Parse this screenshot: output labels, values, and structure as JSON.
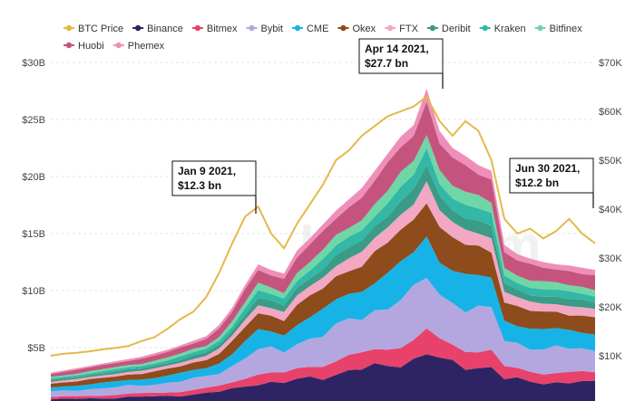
{
  "chart_data": {
    "type": "area",
    "stacked": true,
    "title": "",
    "xlabel": "",
    "ylabel": "",
    "ylim_left": [
      0,
      30
    ],
    "ylim_right": [
      0,
      70
    ],
    "yticks_left": [
      "$5B",
      "$10B",
      "$15B",
      "$20B",
      "$25B",
      "$30B"
    ],
    "yticks_right": [
      "$10K",
      "$20K",
      "$30K",
      "$40K",
      "$50K",
      "$60K",
      "$70K"
    ],
    "grid": true,
    "legend_position": "top",
    "legend": [
      {
        "name": "BTC Price",
        "color": "#e6b84a",
        "kind": "line"
      },
      {
        "name": "Binance",
        "color": "#2e2464",
        "kind": "area"
      },
      {
        "name": "Bitmex",
        "color": "#e8426b",
        "kind": "area"
      },
      {
        "name": "Bybit",
        "color": "#b4a7e0",
        "kind": "area"
      },
      {
        "name": "CME",
        "color": "#17b3e6",
        "kind": "area"
      },
      {
        "name": "Okex",
        "color": "#8e4b1c",
        "kind": "area"
      },
      {
        "name": "FTX",
        "color": "#f2a7c2",
        "kind": "area"
      },
      {
        "name": "Deribit",
        "color": "#3a9b86",
        "kind": "area"
      },
      {
        "name": "Kraken",
        "color": "#33b7a6",
        "kind": "area"
      },
      {
        "name": "Bitfinex",
        "color": "#6fd6a6",
        "kind": "area"
      },
      {
        "name": "Huobi",
        "color": "#c4547e",
        "kind": "area"
      },
      {
        "name": "Phemex",
        "color": "#ef8fb9",
        "kind": "area"
      }
    ],
    "stack_order": [
      "Binance",
      "Bitmex",
      "Bybit",
      "CME",
      "Okex",
      "FTX",
      "Deribit",
      "Kraken",
      "Bitfinex",
      "Huobi",
      "Phemex"
    ],
    "total_oi_billion": [
      2.8,
      3.0,
      3.2,
      3.4,
      3.6,
      3.8,
      4.0,
      4.2,
      4.5,
      4.8,
      5.2,
      5.6,
      6.0,
      7.0,
      8.5,
      10.5,
      12.3,
      11.8,
      11.5,
      13.5,
      14.6,
      15.8,
      17.0,
      18.0,
      19.0,
      20.5,
      22.0,
      23.5,
      24.5,
      27.7,
      24.0,
      22.5,
      21.8,
      21.0,
      20.5,
      14.0,
      13.2,
      12.8,
      12.5,
      12.3,
      12.2,
      12.0,
      11.8
    ],
    "btc_price_k": [
      10.0,
      10.4,
      10.6,
      10.9,
      11.3,
      11.6,
      12.0,
      13.0,
      13.8,
      15.5,
      17.5,
      19.0,
      22.0,
      27.0,
      33.0,
      38.5,
      40.5,
      35.0,
      32.0,
      37.0,
      41.0,
      45.0,
      50.0,
      52.0,
      55.0,
      57.0,
      59.0,
      60.0,
      61.0,
      63.0,
      58.0,
      55.0,
      58.0,
      56.0,
      50.0,
      38.0,
      35.0,
      36.0,
      34.0,
      35.5,
      38.0,
      35.0,
      33.0
    ],
    "annotations": [
      {
        "line1": "Jan 9 2021,",
        "line2": "$12.3 bn",
        "index": 16
      },
      {
        "line1": "Apr 14 2021,",
        "line2": "$27.7 bn",
        "index": 29
      },
      {
        "line1": "Jun 30 2021,",
        "line2": "$12.2 bn",
        "index": 40
      }
    ],
    "watermark": "bybt.com"
  }
}
